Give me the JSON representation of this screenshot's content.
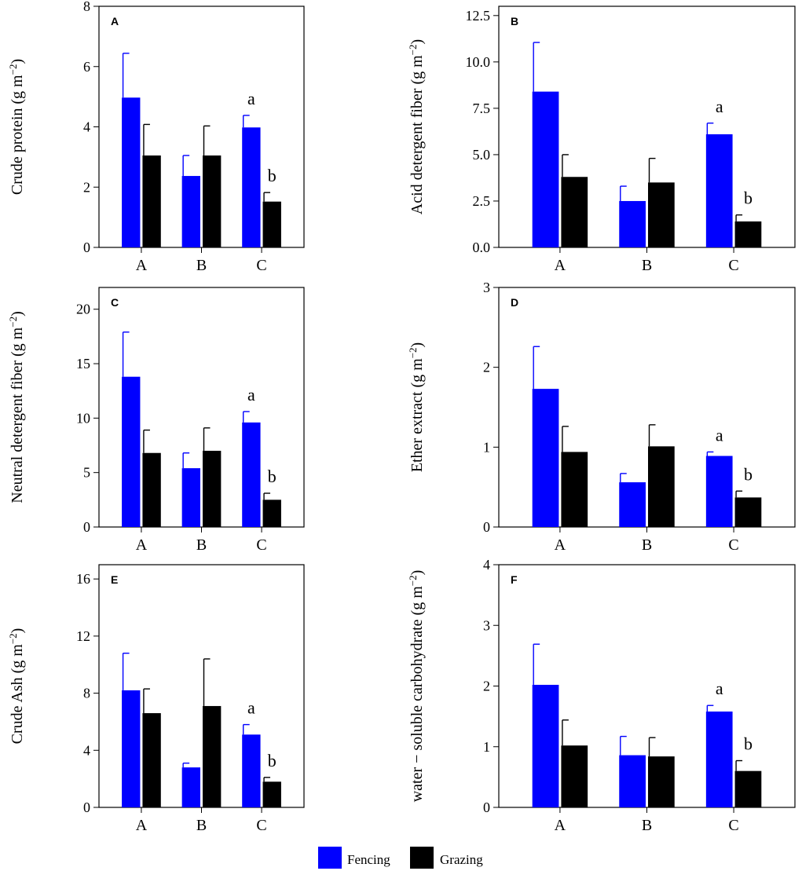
{
  "colors": {
    "fencing": "#0000ff",
    "grazing": "#000000",
    "axis": "#000000"
  },
  "legend": [
    {
      "label": "Fencing",
      "color": "#0000ff"
    },
    {
      "label": "Grazing",
      "color": "#000000"
    }
  ],
  "chart_data": [
    {
      "panel": "A",
      "type": "bar",
      "ylabel": "Crude protein",
      "unit": "(g m",
      "unit_exp": "−2",
      "unit_close": ")",
      "categories": [
        "A",
        "B",
        "C"
      ],
      "ylim": [
        0,
        8
      ],
      "yticks": [
        0,
        2,
        4,
        6,
        8
      ],
      "ytick_labels": [
        "0",
        "2",
        "4",
        "6",
        "8"
      ],
      "series": [
        {
          "name": "Fencing",
          "values": [
            4.97,
            2.37,
            3.98
          ],
          "errors": [
            1.47,
            0.68,
            0.4
          ]
        },
        {
          "name": "Grazing",
          "values": [
            3.05,
            3.05,
            1.52
          ],
          "errors": [
            1.03,
            0.98,
            0.3
          ]
        }
      ],
      "annotations": [
        {
          "category": "C",
          "series": "Fencing",
          "text": "a"
        },
        {
          "category": "C",
          "series": "Grazing",
          "text": "b"
        }
      ]
    },
    {
      "panel": "B",
      "type": "bar",
      "ylabel": "Acid detergent fiber",
      "unit": "(g m",
      "unit_exp": "−2",
      "unit_close": ")",
      "categories": [
        "A",
        "B",
        "C"
      ],
      "ylim": [
        0,
        13
      ],
      "yticks": [
        0,
        2.5,
        5,
        7.5,
        10,
        12.5
      ],
      "ytick_labels": [
        "0.0",
        "2.5",
        "5.0",
        "7.5",
        "10.0",
        "12.5"
      ],
      "series": [
        {
          "name": "Fencing",
          "values": [
            8.4,
            2.5,
            6.1
          ],
          "errors": [
            2.65,
            0.8,
            0.6
          ]
        },
        {
          "name": "Grazing",
          "values": [
            3.8,
            3.5,
            1.4
          ],
          "errors": [
            1.2,
            1.3,
            0.35
          ]
        }
      ],
      "annotations": [
        {
          "category": "C",
          "series": "Fencing",
          "text": "a"
        },
        {
          "category": "C",
          "series": "Grazing",
          "text": "b"
        }
      ]
    },
    {
      "panel": "C",
      "type": "bar",
      "ylabel": "Neutral detergent fiber",
      "unit": "(g m",
      "unit_exp": "−2",
      "unit_close": ")",
      "categories": [
        "A",
        "B",
        "C"
      ],
      "ylim": [
        0,
        22
      ],
      "yticks": [
        0,
        5,
        10,
        15,
        20
      ],
      "ytick_labels": [
        "0",
        "5",
        "10",
        "15",
        "20"
      ],
      "series": [
        {
          "name": "Fencing",
          "values": [
            13.8,
            5.4,
            9.6
          ],
          "errors": [
            4.1,
            1.4,
            1.0
          ]
        },
        {
          "name": "Grazing",
          "values": [
            6.8,
            7.0,
            2.5
          ],
          "errors": [
            2.1,
            2.1,
            0.6
          ]
        }
      ],
      "annotations": [
        {
          "category": "C",
          "series": "Fencing",
          "text": "a"
        },
        {
          "category": "C",
          "series": "Grazing",
          "text": "b"
        }
      ]
    },
    {
      "panel": "D",
      "type": "bar",
      "ylabel": "Ether extract",
      "unit": "(g m",
      "unit_exp": "−2",
      "unit_close": ")",
      "categories": [
        "A",
        "B",
        "C"
      ],
      "ylim": [
        0,
        3
      ],
      "yticks": [
        0,
        1,
        2,
        3
      ],
      "ytick_labels": [
        "0",
        "1",
        "2",
        "3"
      ],
      "series": [
        {
          "name": "Fencing",
          "values": [
            1.73,
            0.56,
            0.89
          ],
          "errors": [
            0.53,
            0.11,
            0.05
          ]
        },
        {
          "name": "Grazing",
          "values": [
            0.94,
            1.01,
            0.37
          ],
          "errors": [
            0.32,
            0.27,
            0.08
          ]
        }
      ],
      "annotations": [
        {
          "category": "C",
          "series": "Fencing",
          "text": "a"
        },
        {
          "category": "C",
          "series": "Grazing",
          "text": "b"
        }
      ]
    },
    {
      "panel": "E",
      "type": "bar",
      "ylabel": "Crude Ash",
      "unit": "(g m",
      "unit_exp": "−2",
      "unit_close": ")",
      "categories": [
        "A",
        "B",
        "C"
      ],
      "ylim": [
        0,
        17
      ],
      "yticks": [
        0,
        4,
        8,
        12,
        16
      ],
      "ytick_labels": [
        "0",
        "4",
        "8",
        "12",
        "16"
      ],
      "series": [
        {
          "name": "Fencing",
          "values": [
            8.2,
            2.8,
            5.1
          ],
          "errors": [
            2.6,
            0.3,
            0.7
          ]
        },
        {
          "name": "Grazing",
          "values": [
            6.6,
            7.1,
            1.8
          ],
          "errors": [
            1.7,
            3.3,
            0.3
          ]
        }
      ],
      "annotations": [
        {
          "category": "C",
          "series": "Fencing",
          "text": "a"
        },
        {
          "category": "C",
          "series": "Grazing",
          "text": "b"
        }
      ]
    },
    {
      "panel": "F",
      "type": "bar",
      "ylabel": "water − soluble carbohydrate",
      "unit": "(g m",
      "unit_exp": "−2",
      "unit_close": ")",
      "categories": [
        "A",
        "B",
        "C"
      ],
      "ylim": [
        0,
        4
      ],
      "yticks": [
        0,
        1,
        2,
        3,
        4
      ],
      "ytick_labels": [
        "0",
        "1",
        "2",
        "3",
        "4"
      ],
      "series": [
        {
          "name": "Fencing",
          "values": [
            2.02,
            0.86,
            1.58
          ],
          "errors": [
            0.67,
            0.31,
            0.1
          ]
        },
        {
          "name": "Grazing",
          "values": [
            1.02,
            0.84,
            0.6
          ],
          "errors": [
            0.42,
            0.31,
            0.17
          ]
        }
      ],
      "annotations": [
        {
          "category": "C",
          "series": "Fencing",
          "text": "a"
        },
        {
          "category": "C",
          "series": "Grazing",
          "text": "b"
        }
      ]
    }
  ]
}
